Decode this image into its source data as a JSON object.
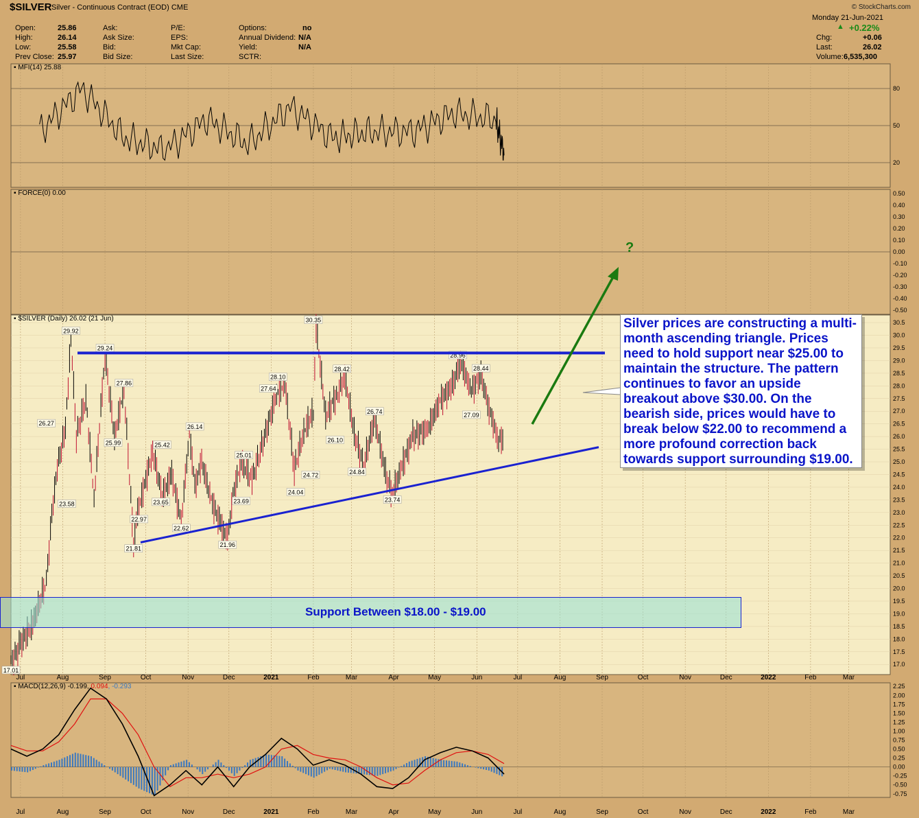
{
  "header": {
    "symbol": "$SILVER",
    "description": "Silver - Continuous Contract (EOD)",
    "exchange": "CME",
    "brand": "© StockCharts.com",
    "date": "Monday  21-Jun-2021"
  },
  "quote": {
    "open_label": "Open:",
    "open": "25.86",
    "high_label": "High:",
    "high": "26.14",
    "low_label": "Low:",
    "low": "25.58",
    "prev_label": "Prev Close:",
    "prev": "25.97",
    "ask_label": "Ask:",
    "asksize_label": "Ask Size:",
    "bid_label": "Bid:",
    "bidsize_label": "Bid Size:",
    "pe_label": "P/E:",
    "eps_label": "EPS:",
    "mktcap_label": "Mkt Cap:",
    "lastsize_label": "Last Size:",
    "options_label": "Options:",
    "options": "no",
    "div_label": "Annual Dividend:",
    "div": "N/A",
    "yield_label": "Yield:",
    "yield": "N/A",
    "sctr_label": "SCTR:",
    "pct": "+0.22%",
    "chg_label": "Chg:",
    "chg": "+0.06",
    "last_label": "Last:",
    "last": "26.02",
    "vol_label": "Volume:",
    "vol": "6,535,300"
  },
  "panels": {
    "mfi_label": "MFI(14) 25.88",
    "force_label": "FORCE(0) 0.00",
    "price_label": "$SILVER (Daily) 26.02 (21 Jun)",
    "macd_label_a": "MACD(12,26,9) -0.199, ",
    "macd_label_b": "0.094",
    "macd_label_c": ", -0.293"
  },
  "annotation": {
    "text": "Silver prices are constructing a multi-month ascending triangle. Prices need to hold support near $25.00 to maintain the structure. The pattern continues to favor an upside breakout above $30.00. On the bearish side, prices would have to break below $22.00 to recommend a more profound correction back towards support surrounding $19.00.",
    "support_text": "Support Between $18.00 - $19.00",
    "question": "?"
  },
  "colors": {
    "background": "#d2aa72",
    "plot": "#f8efc8",
    "trendline": "#1a22d0",
    "arrow": "#1a7a10",
    "annotation_text": "#0a14c8",
    "macd_signal": "#e01010",
    "histogram": "#3a78c0",
    "up_candle": "#000000",
    "down_candle": "#c01030"
  },
  "chart_data": [
    {
      "type": "line",
      "panel": "MFI(14)",
      "ylim": [
        0,
        100
      ],
      "yticks": [
        20,
        50,
        80
      ],
      "x": [
        "2020-07",
        "2020-08",
        "2020-09",
        "2020-10",
        "2020-11",
        "2020-12",
        "2021-01",
        "2021-02",
        "2021-03",
        "2021-04",
        "2021-05",
        "2021-06",
        "2021-06-21"
      ],
      "values": [
        45,
        80,
        40,
        30,
        55,
        35,
        65,
        40,
        45,
        45,
        60,
        55,
        25.88
      ]
    },
    {
      "type": "line",
      "panel": "FORCE(0)",
      "ylim": [
        -0.5,
        0.5
      ],
      "yticks": [
        "0.50",
        "0.40",
        "0.30",
        "0.20",
        "0.10",
        "0.00",
        "-0.10",
        "-0.20",
        "-0.30",
        "-0.40",
        "-0.50"
      ],
      "values": [
        0.0
      ]
    },
    {
      "type": "line",
      "panel": "$SILVER (Daily)",
      "ylim": [
        16.6,
        30.8
      ],
      "yticks": [
        "30.5",
        "30.0",
        "29.5",
        "29.0",
        "28.5",
        "28.0",
        "27.5",
        "27.0",
        "26.5",
        "26.0",
        "25.5",
        "25.0",
        "24.5",
        "24.0",
        "23.5",
        "23.0",
        "22.5",
        "22.0",
        "21.5",
        "21.0",
        "20.5",
        "20.0",
        "19.5",
        "19.0",
        "18.5",
        "18.0",
        "17.5",
        "17.0"
      ],
      "x_labels": [
        "Jul",
        "Aug",
        "Sep",
        "Oct",
        "Nov",
        "Dec",
        "2021",
        "Feb",
        "Mar",
        "Apr",
        "May",
        "Jun",
        "Jul",
        "Aug",
        "Sep",
        "Oct",
        "Nov",
        "Dec",
        "2022",
        "Feb",
        "Mar"
      ],
      "x": [
        "2020-06-24",
        "2020-07-01",
        "2020-07-10",
        "2020-07-20",
        "2020-07-24",
        "2020-07-28",
        "2020-08-03",
        "2020-08-07",
        "2020-08-11",
        "2020-08-18",
        "2020-08-24",
        "2020-09-01",
        "2020-09-08",
        "2020-09-15",
        "2020-09-22",
        "2020-09-25",
        "2020-10-06",
        "2020-10-13",
        "2020-10-20",
        "2020-10-27",
        "2020-11-02",
        "2020-11-06",
        "2020-11-11",
        "2020-11-18",
        "2020-11-25",
        "2020-11-30",
        "2020-12-04",
        "2020-12-10",
        "2020-12-18",
        "2021-01-05",
        "2021-01-11",
        "2021-01-18",
        "2021-01-25",
        "2021-02-01",
        "2021-02-03",
        "2021-02-10",
        "2021-02-19",
        "2021-02-24",
        "2021-03-03",
        "2021-03-10",
        "2021-03-18",
        "2021-03-26",
        "2021-03-31",
        "2021-04-07",
        "2021-04-15",
        "2021-04-26",
        "2021-05-05",
        "2021-05-14",
        "2021-05-20",
        "2021-05-28",
        "2021-06-04",
        "2021-06-10",
        "2021-06-17",
        "2021-06-21"
      ],
      "values": [
        17.01,
        17.8,
        18.6,
        20.3,
        22.9,
        24.8,
        26.27,
        29.92,
        26.0,
        27.5,
        23.58,
        29.24,
        25.99,
        27.86,
        21.81,
        22.97,
        25.42,
        23.65,
        24.5,
        22.62,
        26.14,
        24.0,
        25.0,
        23.5,
        22.5,
        21.96,
        23.69,
        25.01,
        24.3,
        27.64,
        28.1,
        24.72,
        26.2,
        27.0,
        30.35,
        26.8,
        27.7,
        28.42,
        26.1,
        24.84,
        26.74,
        24.5,
        23.74,
        24.8,
        26.0,
        26.3,
        27.4,
        28.0,
        28.96,
        27.8,
        28.44,
        27.09,
        25.8,
        26.02
      ],
      "peak_labels": [
        "17.01",
        "26.27",
        "29.92",
        "23.58",
        "29.24",
        "25.99",
        "27.86",
        "21.81",
        "22.97",
        "25.42",
        "23.65",
        "22.62",
        "26.14",
        "21.96",
        "23.69",
        "25.01",
        "27.64",
        "28.10",
        "24.04",
        "24.72",
        "30.35",
        "28.42",
        "26.10",
        "24.84",
        "26.74",
        "23.74",
        "28.96",
        "28.44",
        "27.09"
      ],
      "resistance": 29.3,
      "support_zone": [
        18.0,
        19.0
      ]
    },
    {
      "type": "line",
      "panel": "MACD(12,26,9)",
      "ylim": [
        -0.85,
        2.35
      ],
      "yticks": [
        "2.25",
        "2.00",
        "1.75",
        "1.50",
        "1.25",
        "1.00",
        "0.75",
        "0.50",
        "0.25",
        "0.00",
        "-0.25",
        "-0.50",
        "-0.75"
      ],
      "x_labels": [
        "Jul",
        "Aug",
        "Sep",
        "Oct",
        "Nov",
        "Dec",
        "2021",
        "Feb",
        "Mar",
        "Apr",
        "May",
        "Jun",
        "Jul",
        "Aug",
        "Sep",
        "Oct",
        "Nov",
        "Dec",
        "2022",
        "Feb",
        "Mar"
      ],
      "series": [
        {
          "name": "MACD",
          "values": [
            0.5,
            0.3,
            0.5,
            0.9,
            1.6,
            2.2,
            1.9,
            1.2,
            0.3,
            -0.8,
            -0.5,
            -0.1,
            -0.5,
            0.0,
            -0.55,
            0.0,
            0.35,
            0.8,
            0.5,
            0.05,
            0.2,
            0.05,
            -0.2,
            -0.55,
            -0.6,
            -0.3,
            0.2,
            0.4,
            0.55,
            0.45,
            0.25,
            -0.199
          ]
        },
        {
          "name": "Signal",
          "values": [
            0.6,
            0.45,
            0.45,
            0.7,
            1.2,
            1.9,
            1.9,
            1.5,
            0.9,
            0.0,
            -0.55,
            -0.3,
            -0.3,
            -0.2,
            -0.3,
            -0.2,
            0.0,
            0.5,
            0.6,
            0.35,
            0.25,
            0.2,
            0.0,
            -0.3,
            -0.5,
            -0.45,
            -0.1,
            0.2,
            0.4,
            0.45,
            0.35,
            0.094
          ]
        },
        {
          "name": "Histogram",
          "values": [
            -0.1,
            -0.15,
            0.05,
            0.2,
            0.4,
            0.3,
            0.0,
            -0.3,
            -0.6,
            -0.8,
            0.05,
            0.2,
            -0.2,
            0.2,
            -0.25,
            0.2,
            0.35,
            0.3,
            -0.1,
            -0.3,
            -0.05,
            -0.15,
            -0.2,
            -0.25,
            -0.1,
            0.15,
            0.3,
            0.2,
            0.15,
            0.0,
            -0.1,
            -0.293
          ]
        }
      ]
    }
  ]
}
